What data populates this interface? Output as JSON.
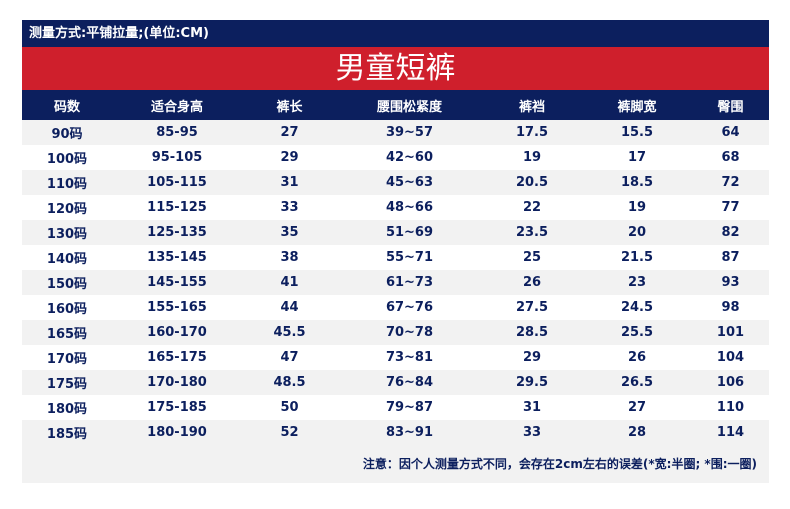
{
  "subtitle": "测量方式:平铺拉量;(单位:CM)",
  "title": "男童短裤",
  "columns": [
    "码数",
    "适合身高",
    "裤长",
    "腰围松紧度",
    "裤裆",
    "裤脚宽",
    "臀围"
  ],
  "rows": [
    [
      "90码",
      "85-95",
      "27",
      "39~57",
      "17.5",
      "15.5",
      "64"
    ],
    [
      "100码",
      "95-105",
      "29",
      "42~60",
      "19",
      "17",
      "68"
    ],
    [
      "110码",
      "105-115",
      "31",
      "45~63",
      "20.5",
      "18.5",
      "72"
    ],
    [
      "120码",
      "115-125",
      "33",
      "48~66",
      "22",
      "19",
      "77"
    ],
    [
      "130码",
      "125-135",
      "35",
      "51~69",
      "23.5",
      "20",
      "82"
    ],
    [
      "140码",
      "135-145",
      "38",
      "55~71",
      "25",
      "21.5",
      "87"
    ],
    [
      "150码",
      "145-155",
      "41",
      "61~73",
      "26",
      "23",
      "93"
    ],
    [
      "160码",
      "155-165",
      "44",
      "67~76",
      "27.5",
      "24.5",
      "98"
    ],
    [
      "165码",
      "160-170",
      "45.5",
      "70~78",
      "28.5",
      "25.5",
      "101"
    ],
    [
      "170码",
      "165-175",
      "47",
      "73~81",
      "29",
      "26",
      "104"
    ],
    [
      "175码",
      "170-180",
      "48.5",
      "76~84",
      "29.5",
      "26.5",
      "106"
    ],
    [
      "180码",
      "175-185",
      "50",
      "79~87",
      "31",
      "27",
      "110"
    ],
    [
      "185码",
      "180-190",
      "52",
      "83~91",
      "33",
      "28",
      "114"
    ]
  ],
  "note": "注意：因个人测量方式不同，会存在2cm左右的误差(*宽:半圈; *围:一圈)",
  "colors": {
    "navy": "#0c1f5e",
    "red": "#cf1f2c",
    "row_alt": "#f2f2f2"
  }
}
